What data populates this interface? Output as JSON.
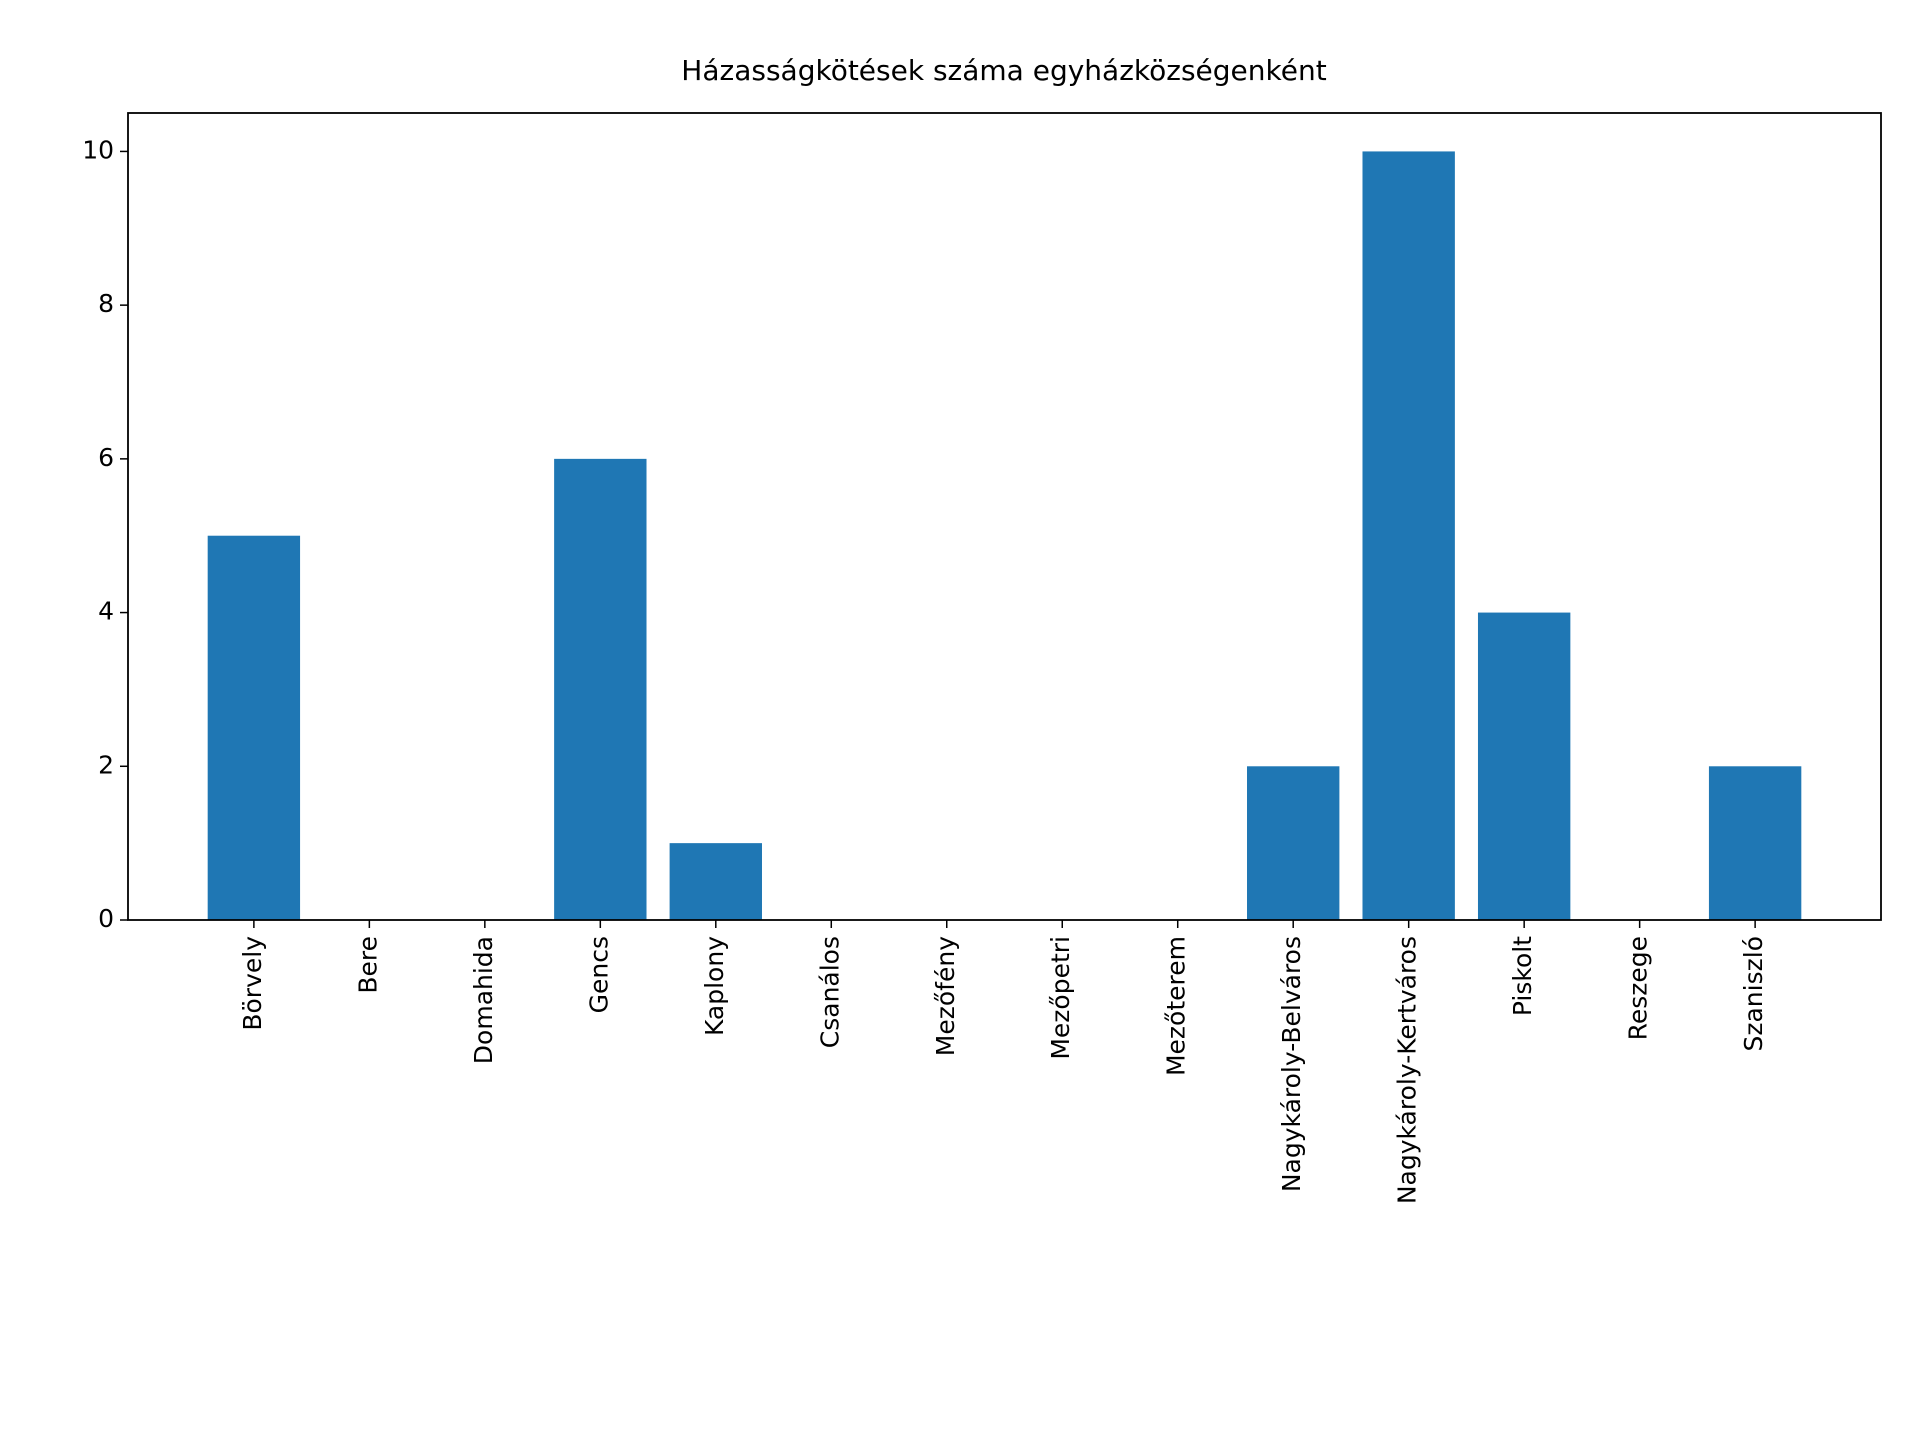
{
  "chart_data": {
    "type": "bar",
    "title": "Házasságkötések száma egyházközségenként",
    "categories": [
      "Börvely",
      "Bere",
      "Domahida",
      "Gencs",
      "Kaplony",
      "Csanálos",
      "Mezőfény",
      "Mezőpetri",
      "Mezőterem",
      "Nagykároly-Belváros",
      "Nagykároly-Kertváros",
      "Piskolt",
      "Reszege",
      "Szaniszló"
    ],
    "values": [
      5,
      0,
      0,
      6,
      1,
      0,
      0,
      0,
      0,
      2,
      10,
      4,
      0,
      2
    ],
    "color": "#1f77b4",
    "ylim": [
      0,
      10.5
    ],
    "yticks": [
      0,
      2,
      4,
      6,
      8,
      10
    ],
    "grid": false
  }
}
